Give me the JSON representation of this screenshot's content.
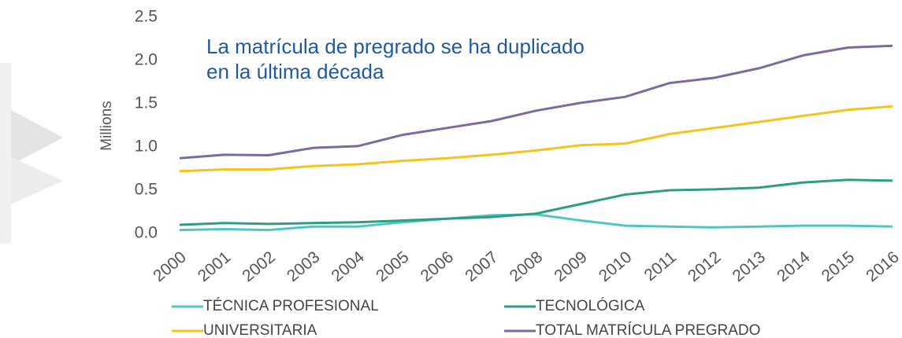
{
  "chart_data": {
    "type": "line",
    "annotation": [
      "La matrícula de pregrado se ha duplicado",
      "en la última década"
    ],
    "ylabel": "Millions",
    "x": [
      2000,
      2001,
      2002,
      2003,
      2004,
      2005,
      2006,
      2007,
      2008,
      2009,
      2010,
      2011,
      2012,
      2013,
      2014,
      2015,
      2016
    ],
    "xlim": [
      2000,
      2016
    ],
    "ylim": [
      0,
      2.5
    ],
    "yticks": [
      {
        "value": 0,
        "label": "0.0"
      },
      0.5,
      {
        "value": 1,
        "label": "1.0"
      },
      1.5,
      {
        "value": 2,
        "label": "2.0"
      },
      2.5
    ],
    "grid": false,
    "series": [
      {
        "name": "TÉCNICA PROFESIONAL",
        "color": "#4fc6c6",
        "values": [
          0.04,
          0.05,
          0.04,
          0.08,
          0.08,
          0.13,
          0.17,
          0.21,
          0.22,
          0.15,
          0.09,
          0.08,
          0.07,
          0.08,
          0.09,
          0.09,
          0.08
        ]
      },
      {
        "name": "TECNOLÓGICA",
        "color": "#2e9e80",
        "values": [
          0.1,
          0.12,
          0.11,
          0.12,
          0.13,
          0.15,
          0.17,
          0.19,
          0.23,
          0.34,
          0.45,
          0.5,
          0.51,
          0.53,
          0.59,
          0.62,
          0.61
        ]
      },
      {
        "name": "UNIVERSITARIA",
        "color": "#f5c31c",
        "values": [
          0.72,
          0.74,
          0.74,
          0.78,
          0.8,
          0.84,
          0.87,
          0.91,
          0.96,
          1.02,
          1.04,
          1.15,
          1.22,
          1.29,
          1.36,
          1.43,
          1.47
        ]
      },
      {
        "name": "TOTAL MATRÍCULA PREGRADO",
        "color": "#7d6a9e",
        "values": [
          0.87,
          0.91,
          0.905,
          0.99,
          1.01,
          1.14,
          1.22,
          1.3,
          1.42,
          1.51,
          1.58,
          1.74,
          1.8,
          1.91,
          2.06,
          2.15,
          2.17
        ]
      }
    ]
  }
}
